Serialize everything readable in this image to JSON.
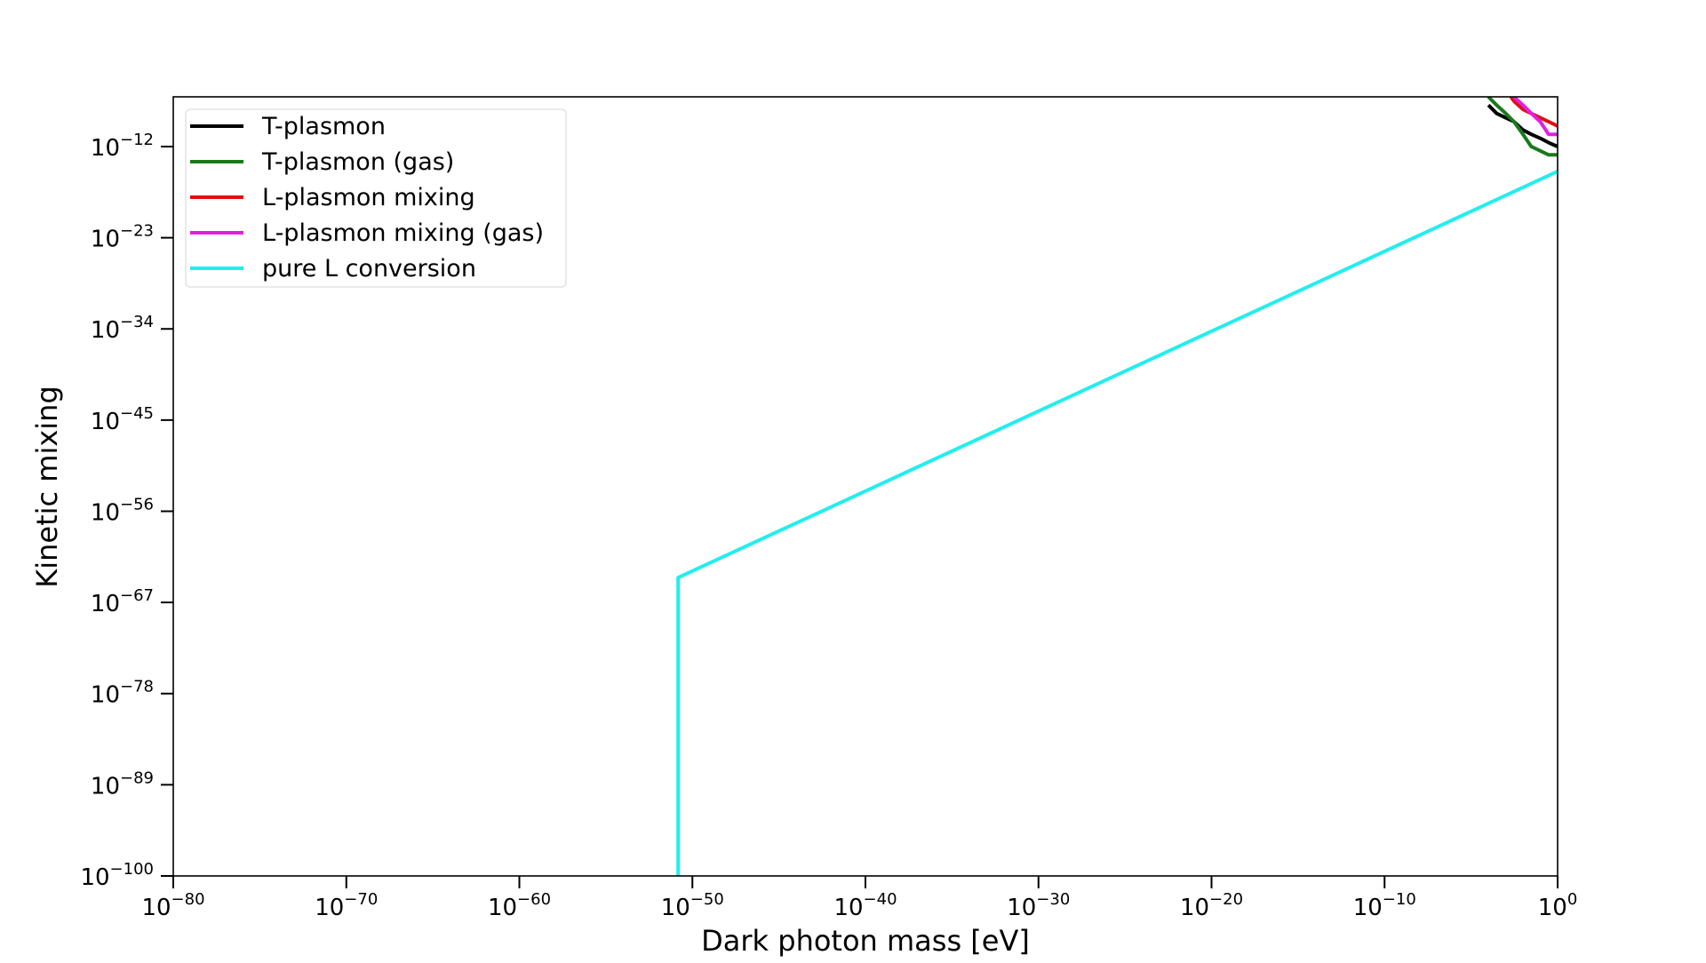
{
  "chart_data": {
    "type": "line",
    "title": "",
    "xlabel": "Dark photon mass [eV]",
    "ylabel": "Kinetic mixing",
    "x_scale": "log",
    "y_scale": "log",
    "xlim": [
      1e-80,
      1
    ],
    "ylim": [
      1e-100,
      1e-06
    ],
    "x_ticks": [
      {
        "base": "10",
        "exp": "−80",
        "value": 1e-80
      },
      {
        "base": "10",
        "exp": "−70",
        "value": 1e-70
      },
      {
        "base": "10",
        "exp": "−60",
        "value": 1e-60
      },
      {
        "base": "10",
        "exp": "−50",
        "value": 1e-50
      },
      {
        "base": "10",
        "exp": "−40",
        "value": 1e-40
      },
      {
        "base": "10",
        "exp": "−30",
        "value": 1e-30
      },
      {
        "base": "10",
        "exp": "−20",
        "value": 1e-20
      },
      {
        "base": "10",
        "exp": "−10",
        "value": 1e-10
      },
      {
        "base": "10",
        "exp": "0",
        "value": 1
      }
    ],
    "y_ticks": [
      {
        "base": "10",
        "exp": "−12",
        "value": 1e-12
      },
      {
        "base": "10",
        "exp": "−23",
        "value": 1e-23
      },
      {
        "base": "10",
        "exp": "−34",
        "value": 1e-34
      },
      {
        "base": "10",
        "exp": "−45",
        "value": 1e-45
      },
      {
        "base": "10",
        "exp": "−56",
        "value": 1e-56
      },
      {
        "base": "10",
        "exp": "−67",
        "value": 1e-67
      },
      {
        "base": "10",
        "exp": "−78",
        "value": 1e-78
      },
      {
        "base": "10",
        "exp": "−89",
        "value": 1e-89
      },
      {
        "base": "10",
        "exp": "−100",
        "value": 1e-100
      }
    ],
    "legend_position": "upper-left",
    "grid": false,
    "series": [
      {
        "name": "T-plasmon",
        "color": "#000000",
        "x": [
          0.0001,
          0.0003,
          0.001,
          0.003,
          0.01,
          0.03,
          0.1,
          0.3,
          1
        ],
        "y": [
          1e-07,
          1e-08,
          3e-09,
          1e-09,
          1e-10,
          3e-11,
          1e-11,
          3e-12,
          1e-12
        ]
      },
      {
        "name": "T-plasmon (gas)",
        "color": "#1a7a1a",
        "x": [
          0.0001,
          0.0003,
          0.001,
          0.003,
          0.01,
          0.03,
          0.1,
          0.3,
          1
        ],
        "y": [
          1e-06,
          1e-07,
          1e-08,
          1e-09,
          3e-11,
          1e-12,
          3e-13,
          1e-13,
          1e-13
        ]
      },
      {
        "name": "L-plasmon mixing",
        "color": "#dd1111",
        "x": [
          0.002,
          0.003,
          0.01,
          0.03,
          0.1,
          0.3,
          1
        ],
        "y": [
          1e-06,
          3e-07,
          3e-08,
          1e-08,
          3e-09,
          1e-09,
          3e-10
        ]
      },
      {
        "name": "L-plasmon mixing (gas)",
        "color": "#e020e0",
        "x": [
          0.003,
          0.01,
          0.03,
          0.1,
          0.3,
          1
        ],
        "y": [
          1e-06,
          1e-07,
          1e-08,
          1e-09,
          3e-11,
          3e-11
        ]
      },
      {
        "name": "pure L conversion",
        "color": "#22eeee",
        "x": [
          1.5e-51,
          1.5e-51,
          1
        ],
        "y": [
          1e-100,
          1e-64,
          1e-15
        ]
      }
    ]
  }
}
